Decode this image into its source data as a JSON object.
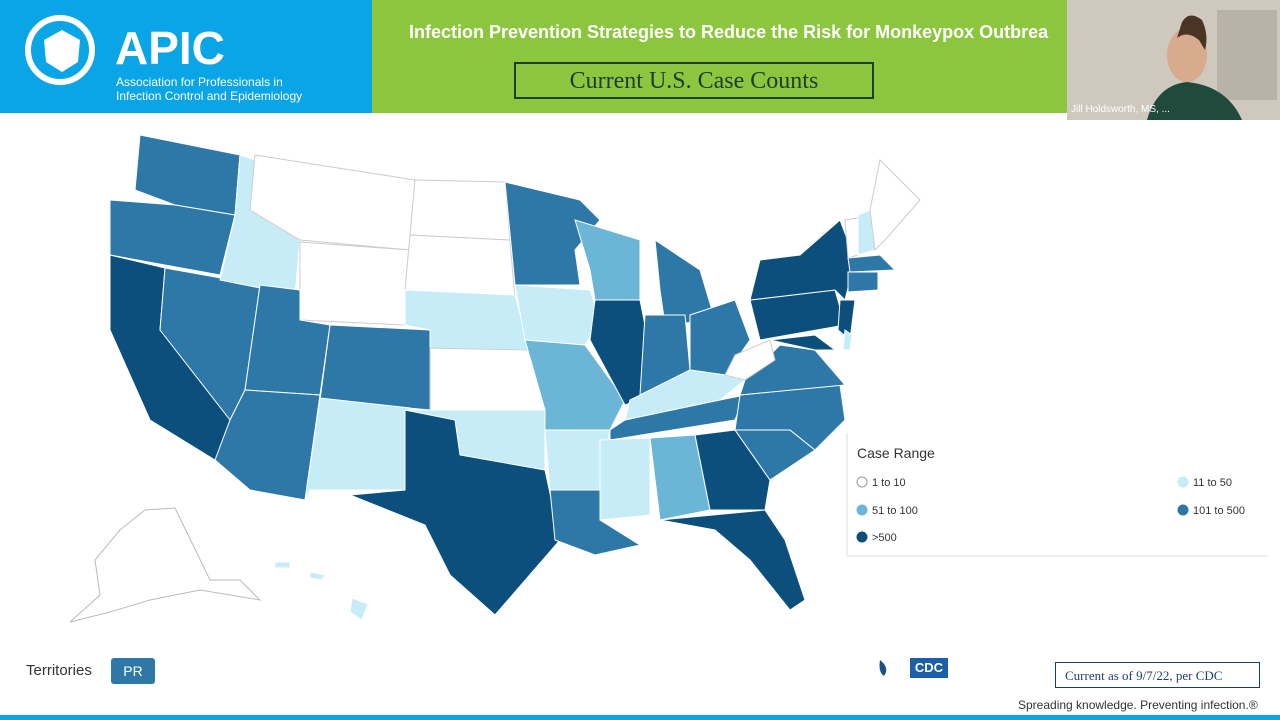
{
  "header": {
    "logo_text": "APIC",
    "org_line1": "Association for Professionals in",
    "org_line2": "Infection Control and Epidemiology",
    "slide_title": "Infection Prevention Strategies to Reduce the Risk for Monkeypox Outbrea",
    "subtitle": "Current U.S. Case Counts"
  },
  "video": {
    "speaker": "Jill Holdsworth, MS, ..."
  },
  "legend": {
    "title": "Case Range",
    "items": [
      "1 to 10",
      "11 to 50",
      "51 to 100",
      "101 to 500",
      ">500"
    ]
  },
  "territories": {
    "label": "Territories",
    "button": "PR"
  },
  "footer": {
    "cdc": "CDC",
    "note": "Current as of 9/7/22, per CDC",
    "tagline": "Spreading knowledge. Preventing infection.®"
  }
}
